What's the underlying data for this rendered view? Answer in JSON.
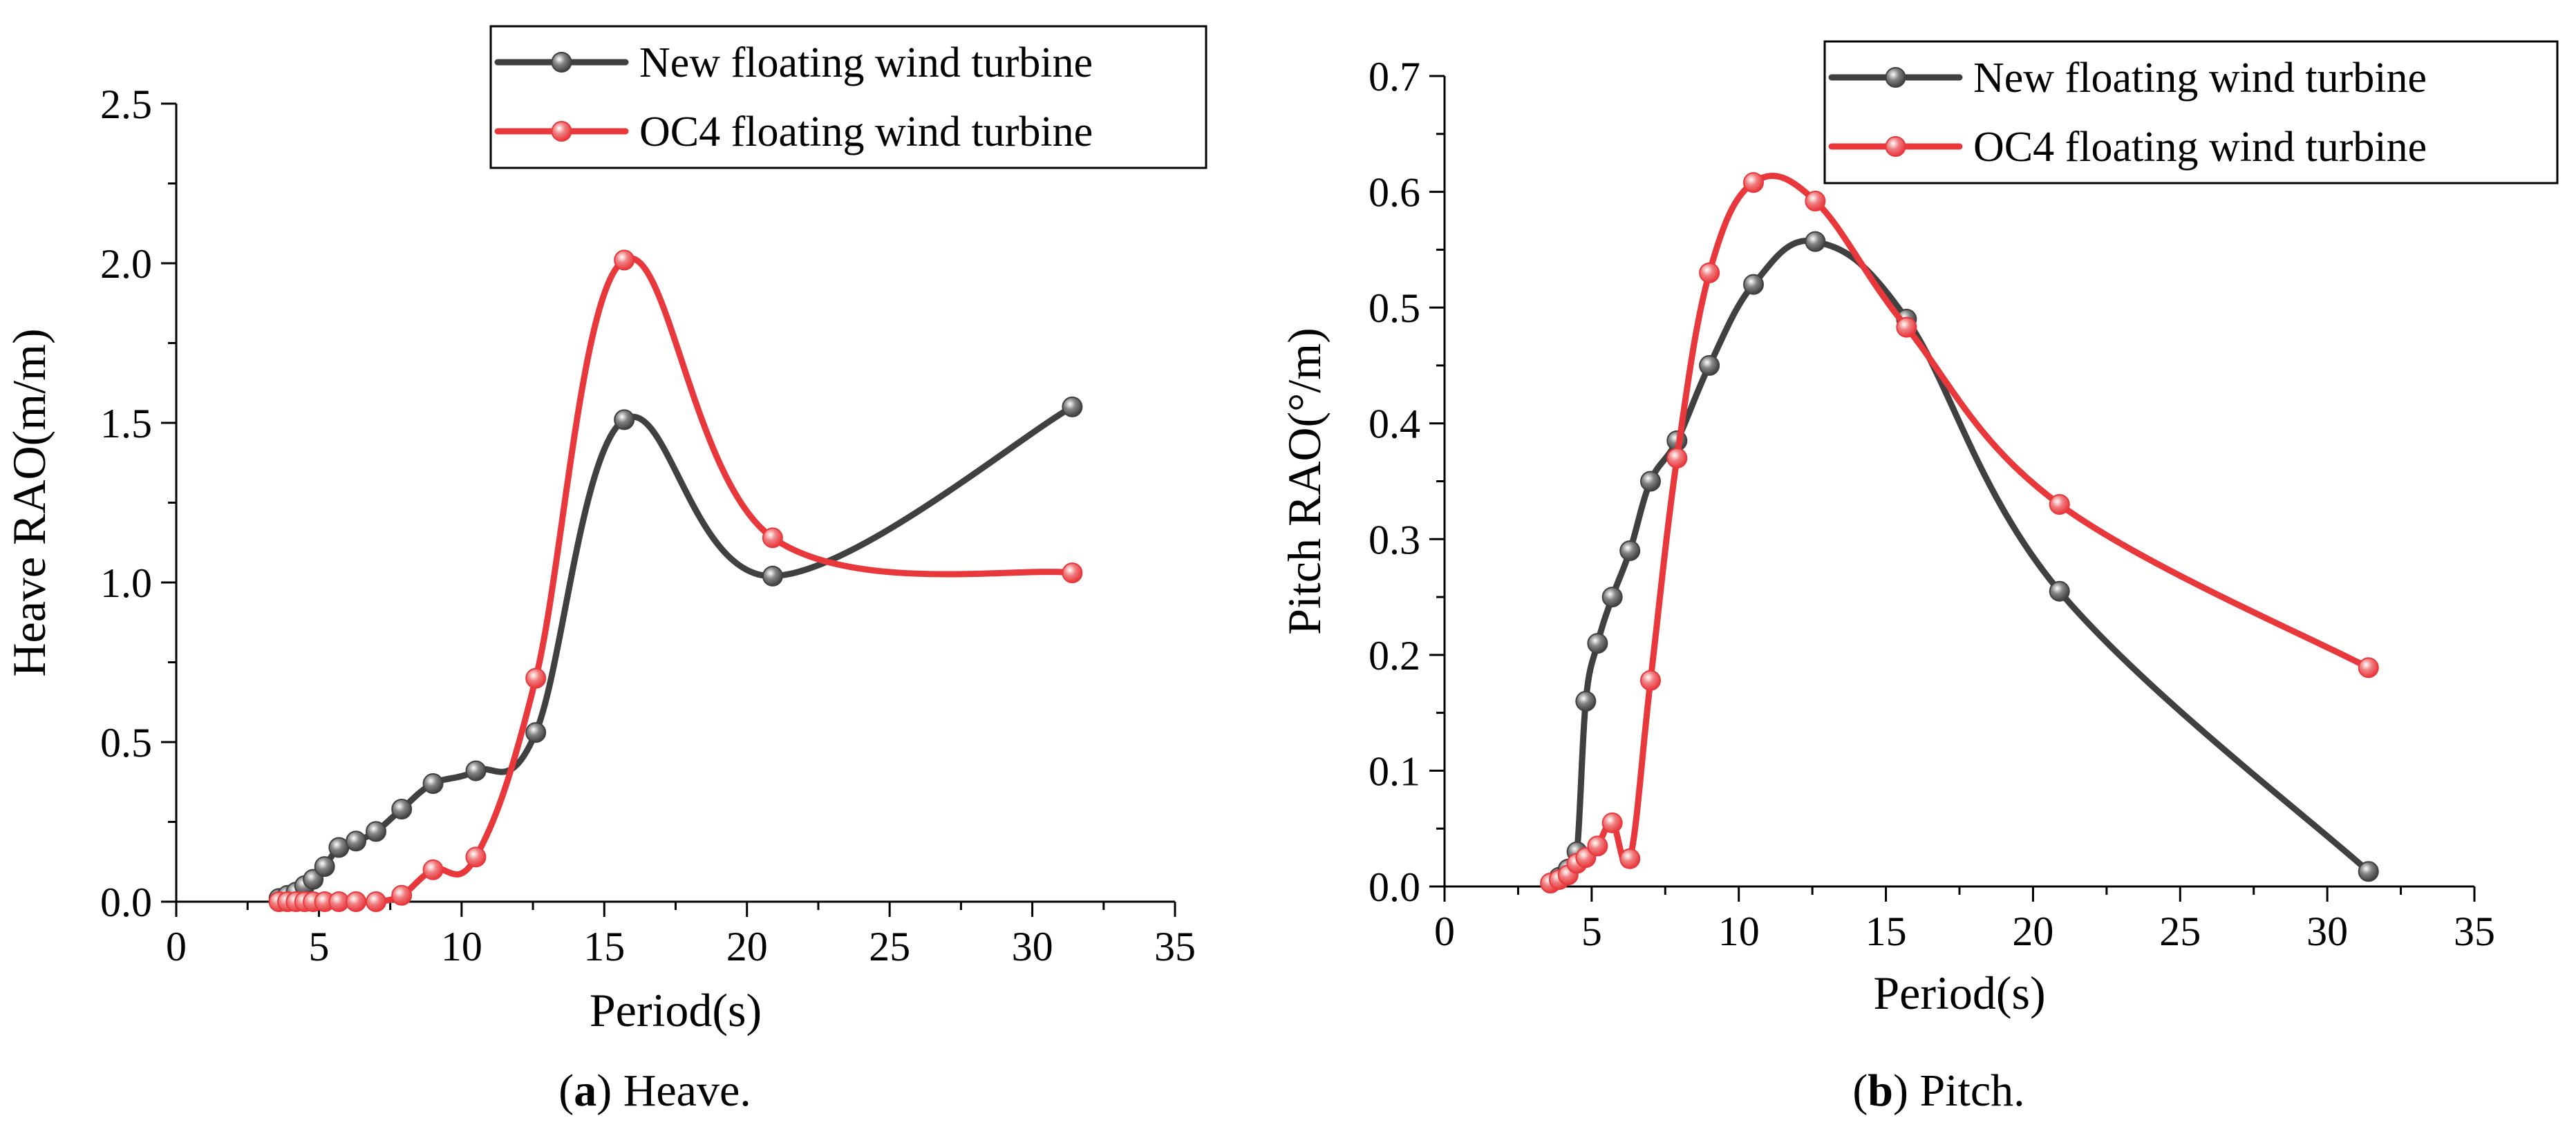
{
  "colors": {
    "new_series": "#404040",
    "oc4_series": "#e8383c",
    "axis": "#000000"
  },
  "chart_data": [
    {
      "type": "line",
      "panel_id": "heave",
      "caption_letter": "a",
      "caption_text": ") Heave.",
      "caption_open": "(",
      "xlabel": "Period(s)",
      "ylabel": "Heave RAO(m/m)",
      "xlim": [
        0,
        35
      ],
      "ylim": [
        0,
        2.5
      ],
      "xticks": [
        0,
        5,
        10,
        15,
        20,
        25,
        30,
        35
      ],
      "yticks": [
        0.0,
        0.5,
        1.0,
        1.5,
        2.0,
        2.5
      ],
      "xtick_labels": [
        "0",
        "5",
        "10",
        "15",
        "20",
        "25",
        "30",
        "35"
      ],
      "ytick_labels": [
        "0.0",
        "0.5",
        "1.0",
        "1.5",
        "2.0",
        "2.5"
      ],
      "legend_position": "top-right",
      "series": [
        {
          "name": "New floating wind turbine",
          "color": "#404040",
          "x": [
            3.6,
            3.9,
            4.2,
            4.5,
            4.8,
            5.2,
            5.7,
            6.3,
            7.0,
            7.9,
            9.0,
            10.5,
            12.6,
            15.7,
            20.9,
            31.4
          ],
          "y": [
            0.01,
            0.02,
            0.03,
            0.05,
            0.07,
            0.11,
            0.17,
            0.19,
            0.22,
            0.29,
            0.37,
            0.41,
            0.53,
            1.51,
            1.02,
            1.55
          ]
        },
        {
          "name": "OC4 floating wind turbine",
          "color": "#e8383c",
          "x": [
            3.6,
            3.9,
            4.2,
            4.5,
            4.8,
            5.2,
            5.7,
            6.3,
            7.0,
            7.9,
            9.0,
            10.5,
            12.6,
            15.7,
            20.9,
            31.4
          ],
          "y": [
            0.0,
            0.0,
            0.0,
            0.0,
            0.0,
            0.0,
            0.0,
            0.0,
            0.0,
            0.02,
            0.1,
            0.14,
            0.7,
            2.01,
            1.14,
            1.03
          ]
        }
      ]
    },
    {
      "type": "line",
      "panel_id": "pitch",
      "caption_letter": "b",
      "caption_text": ") Pitch.",
      "caption_open": "(",
      "xlabel": "Period(s)",
      "ylabel": "Pitch RAO(°/m)",
      "xlim": [
        0,
        35
      ],
      "ylim": [
        0,
        0.7
      ],
      "xticks": [
        0,
        5,
        10,
        15,
        20,
        25,
        30,
        35
      ],
      "yticks": [
        0.0,
        0.1,
        0.2,
        0.3,
        0.4,
        0.5,
        0.6,
        0.7
      ],
      "xtick_labels": [
        "0",
        "5",
        "10",
        "15",
        "20",
        "25",
        "30",
        "35"
      ],
      "ytick_labels": [
        "0.0",
        "0.1",
        "0.2",
        "0.3",
        "0.4",
        "0.5",
        "0.6",
        "0.7"
      ],
      "legend_position": "top-right",
      "series": [
        {
          "name": "New floating wind turbine",
          "color": "#404040",
          "x": [
            3.6,
            3.9,
            4.2,
            4.5,
            4.8,
            5.2,
            5.7,
            6.3,
            7.0,
            7.9,
            9.0,
            10.5,
            12.6,
            15.7,
            20.9,
            31.4
          ],
          "y": [
            0.003,
            0.008,
            0.015,
            0.03,
            0.16,
            0.21,
            0.25,
            0.29,
            0.35,
            0.385,
            0.45,
            0.52,
            0.557,
            0.49,
            0.255,
            0.013
          ]
        },
        {
          "name": "OC4 floating wind turbine",
          "color": "#e8383c",
          "x": [
            3.6,
            3.9,
            4.2,
            4.5,
            4.8,
            5.2,
            5.7,
            6.3,
            7.0,
            7.9,
            9.0,
            10.5,
            12.6,
            15.7,
            20.9,
            31.4
          ],
          "y": [
            0.003,
            0.006,
            0.01,
            0.02,
            0.025,
            0.035,
            0.055,
            0.024,
            0.178,
            0.37,
            0.53,
            0.608,
            0.592,
            0.483,
            0.33,
            0.189
          ]
        }
      ]
    }
  ]
}
